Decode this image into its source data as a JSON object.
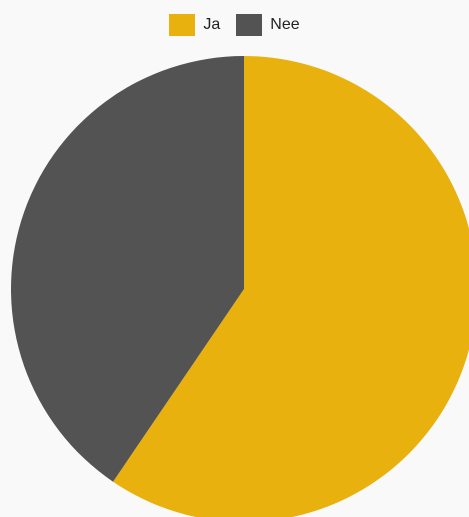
{
  "chart_data": {
    "type": "pie",
    "title": "",
    "categories": [
      "Ja",
      "Nee"
    ],
    "values": [
      59.5,
      40.5
    ],
    "colors": [
      "#e8b10e",
      "#535353"
    ],
    "legend_position": "top-center",
    "start": "top",
    "direction": "clockwise"
  }
}
